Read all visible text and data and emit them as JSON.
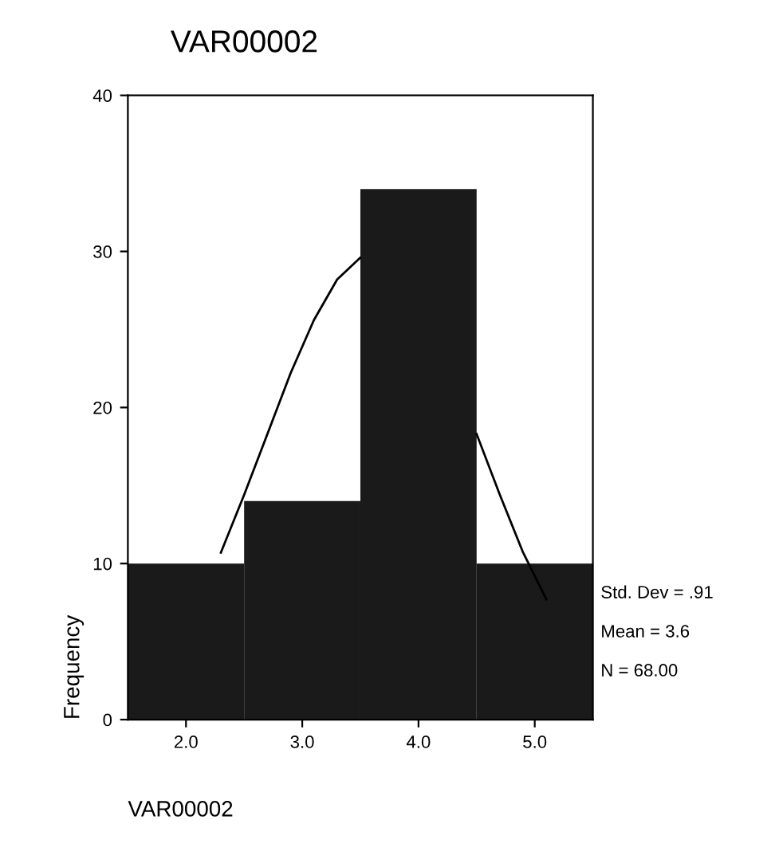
{
  "chart_data": {
    "type": "histogram",
    "title": "VAR00002",
    "xlabel": "VAR00002",
    "ylabel": "Frequency",
    "bins": [
      1.5,
      2.5,
      3.5,
      4.5,
      5.5
    ],
    "values": [
      10,
      14,
      34,
      10
    ],
    "color": "#1a1a1a",
    "series": [
      {
        "type": "line",
        "color": "#000000",
        "x": [
          2.3,
          2.5,
          2.7,
          2.9,
          3.1,
          3.3,
          3.5,
          4.0,
          4.5,
          4.7,
          4.9,
          5.1
        ],
        "values": [
          10.7,
          14.4,
          18.3,
          22.2,
          25.6,
          28.2,
          29.6,
          null,
          18.3,
          14.4,
          10.7,
          7.7
        ]
      }
    ],
    "xlim": [
      1.5,
      5.5
    ],
    "xticks": [
      {
        "value": 2,
        "label": "2.0"
      },
      {
        "value": 3,
        "label": "3.0"
      },
      {
        "value": 4,
        "label": "4.0"
      },
      {
        "value": 5,
        "label": "5.0"
      }
    ],
    "ylim": [
      0,
      40
    ],
    "yticks": [
      0,
      10,
      20,
      30,
      40
    ],
    "grid": false,
    "legend": false,
    "annotations": [
      "Std. Dev = .91",
      "Mean = 3.6",
      "N = 68.00"
    ]
  }
}
